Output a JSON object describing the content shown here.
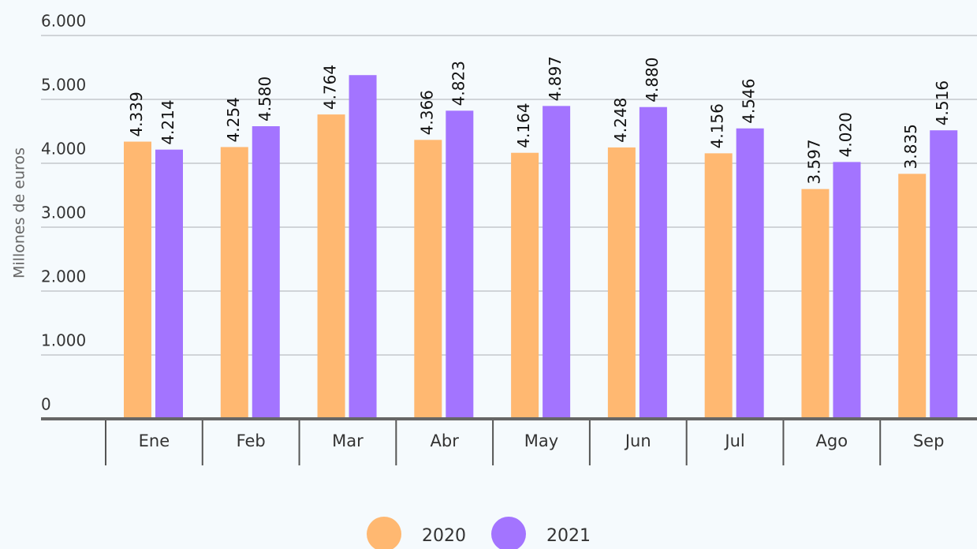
{
  "chart_data": {
    "type": "bar",
    "y_label": "Millones de euros",
    "categories": [
      "Ene",
      "Feb",
      "Mar",
      "Abr",
      "May",
      "Jun",
      "Jul",
      "Ago",
      "Sep"
    ],
    "series": [
      {
        "name": "2020",
        "color": "#ffb871",
        "values": [
          4339,
          4254,
          4764,
          4366,
          4164,
          4248,
          4156,
          3597,
          3835
        ],
        "value_labels": [
          "4.339",
          "4.254",
          "4.764",
          "4.366",
          "4.164",
          "4.248",
          "4.156",
          "3.597",
          "3.835"
        ]
      },
      {
        "name": "2021",
        "color": "#a374ff",
        "values": [
          4214,
          4580,
          5380,
          4823,
          4897,
          4880,
          4546,
          4020,
          4516
        ],
        "value_labels": [
          "4.214",
          "4.580",
          null,
          "4.823",
          "4.897",
          "4.880",
          "4.546",
          "4.020",
          "4.516"
        ]
      }
    ],
    "ylim": [
      0,
      6000
    ],
    "yticks": [
      0,
      {
        "value": 1000,
        "label": "1.000"
      },
      {
        "value": 2000,
        "label": "2.000"
      },
      {
        "value": 3000,
        "label": "3.000"
      },
      {
        "value": 4000,
        "label": "4.000"
      },
      {
        "value": 5000,
        "label": "5.000"
      },
      {
        "value": 6000,
        "label": "6.000"
      }
    ],
    "grid": true,
    "legend": "bottom"
  }
}
